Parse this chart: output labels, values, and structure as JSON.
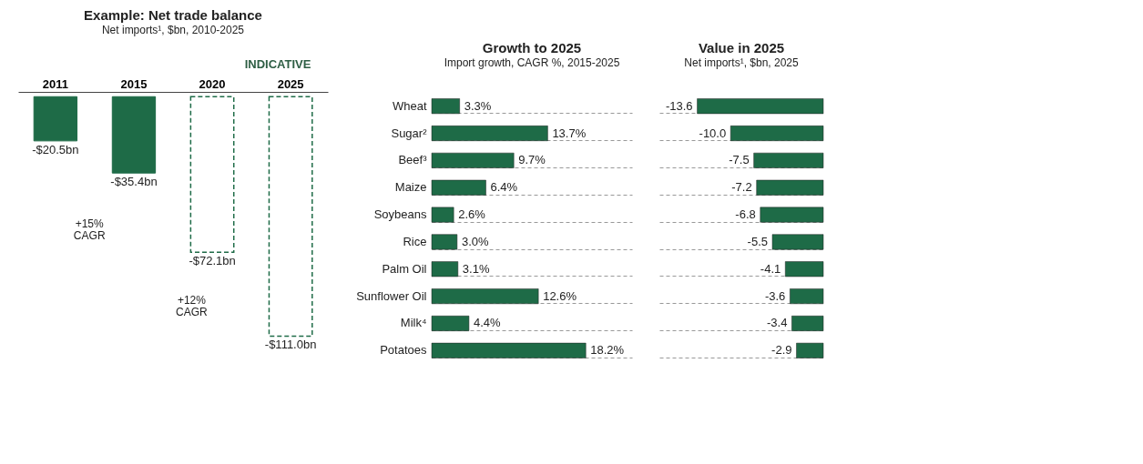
{
  "chart_data": [
    {
      "type": "bar",
      "title": "Example: Net trade balance",
      "subtitle": "Net imports¹, $bn, 2010-2025",
      "categories": [
        "2011",
        "2015",
        "2020",
        "2025"
      ],
      "series": [
        {
          "color": "#1e6b47",
          "values": [
            -20.5,
            -35.4,
            null,
            null
          ],
          "value_labels": [
            "-$20.5bn",
            "-$35.4bn",
            null,
            null
          ]
        },
        {
          "color": "#1e6b47",
          "line_style": "dashed",
          "values": [
            null,
            null,
            -72.1,
            -111.0
          ],
          "value_labels": [
            null,
            null,
            "-$72.1bn",
            "-$111.0bn"
          ]
        }
      ],
      "annotations": [
        "INDICATIVE",
        "+15% CAGR",
        "+12% CAGR"
      ],
      "tick_labels": "x"
    },
    {
      "type": "bar",
      "orientation": "horizontal",
      "title": "Growth to 2025",
      "subtitle": "Import growth, CAGR %, 2015-2025",
      "categories": [
        "Wheat",
        "Sugar²",
        "Beef³",
        "Maize",
        "Soybeans",
        "Rice",
        "Palm Oil",
        "Sunflower Oil",
        "Milk⁴",
        "Potatoes"
      ],
      "values": [
        3.3,
        13.7,
        9.7,
        6.4,
        2.6,
        3.0,
        3.1,
        12.6,
        4.4,
        18.2
      ],
      "value_labels": [
        "3.3%",
        "13.7%",
        "9.7%",
        "6.4%",
        "2.6%",
        "3.0%",
        "3.1%",
        "12.6%",
        "4.4%",
        "18.2%"
      ],
      "color": "#1e6b47",
      "tick_labels": "y",
      "grid": "y"
    },
    {
      "type": "bar",
      "orientation": "horizontal",
      "title": "Value in 2025",
      "subtitle": "Net imports¹, $bn, 2025",
      "categories": [
        null,
        null,
        null,
        null,
        null,
        null,
        null,
        null,
        null,
        null
      ],
      "values": [
        -13.6,
        -10.0,
        -7.5,
        -7.2,
        -6.8,
        -5.5,
        -4.1,
        -3.6,
        -3.4,
        -2.9
      ],
      "value_labels": [
        "-13.6",
        "-10.0",
        "-7.5",
        "-7.2",
        "-6.8",
        "-5.5",
        "-4.1",
        "-3.6",
        "-3.4",
        "-2.9"
      ],
      "color": "#1e6b47",
      "tick_labels": false,
      "grid": "y"
    }
  ]
}
